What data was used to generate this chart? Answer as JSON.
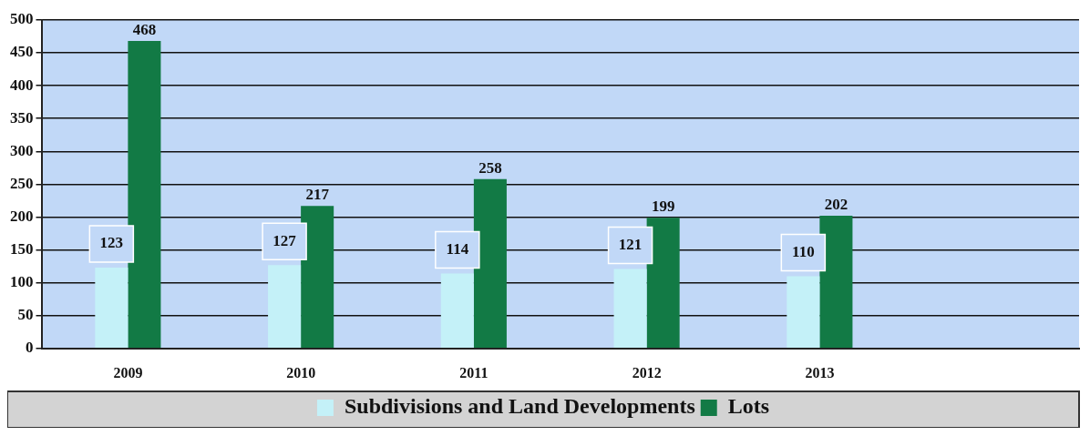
{
  "chart_data": {
    "type": "bar",
    "categories": [
      "2009",
      "2010",
      "2011",
      "2012",
      "2013",
      null
    ],
    "series": [
      {
        "name": "Subdivisions and Land Developments",
        "color": "#c4f1f8",
        "values": [
          123,
          127,
          114,
          121,
          110,
          null
        ]
      },
      {
        "name": "Lots",
        "color": "#127a45",
        "values": [
          468,
          217,
          258,
          199,
          202,
          null
        ]
      }
    ],
    "ylim": [
      0,
      500
    ],
    "yticks": [
      0,
      50,
      100,
      150,
      200,
      250,
      300,
      350,
      400,
      450,
      500
    ],
    "grid": "y",
    "legend": "bottom",
    "data_labels": true
  }
}
